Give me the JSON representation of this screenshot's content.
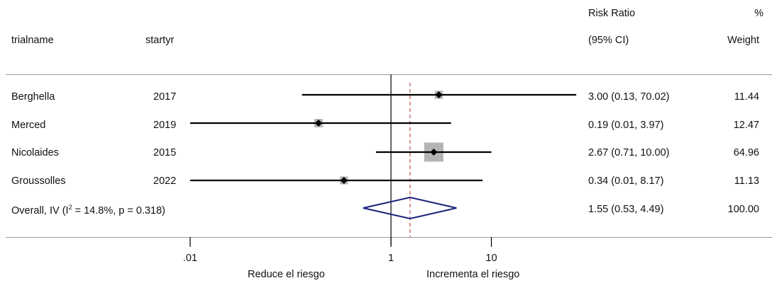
{
  "header": {
    "col_trial": "trialname",
    "col_startyr": "startyr",
    "col_rr_line1": "Risk Ratio",
    "col_rr_line2": "(95% CI)",
    "col_weight_line1": "%",
    "col_weight_line2": "Weight"
  },
  "chart_data": {
    "type": "forest",
    "scale": "log",
    "null_value": 1,
    "xlim": [
      0.0055,
      25
    ],
    "ticks": [
      {
        "label": ".01",
        "value": 0.01
      },
      {
        "label": "1",
        "value": 1
      },
      {
        "label": "10",
        "value": 10
      }
    ],
    "x_left_label": "Reduce el riesgo",
    "x_right_label": "Incrementa el riesgo",
    "studies": [
      {
        "trialname": "Berghella",
        "startyr": "2017",
        "rr": 3.0,
        "lo": 0.13,
        "hi": 70.02,
        "ci_text": "3.00 (0.13, 70.02)",
        "weight": 11.44,
        "weight_text": "11.44"
      },
      {
        "trialname": "Merced",
        "startyr": "2019",
        "rr": 0.19,
        "lo": 0.01,
        "hi": 3.97,
        "ci_text": "0.19 (0.01, 3.97)",
        "weight": 12.47,
        "weight_text": "12.47"
      },
      {
        "trialname": "Nicolaides",
        "startyr": "2015",
        "rr": 2.67,
        "lo": 0.71,
        "hi": 10.0,
        "ci_text": "2.67 (0.71, 10.00)",
        "weight": 64.96,
        "weight_text": "64.96"
      },
      {
        "trialname": "Groussolles",
        "startyr": "2022",
        "rr": 0.34,
        "lo": 0.01,
        "hi": 8.17,
        "ci_text": "0.34 (0.01, 8.17)",
        "weight": 11.13,
        "weight_text": "11.13"
      }
    ],
    "overall": {
      "label_prefix": "Overall, IV (I",
      "label_sup": "2",
      "label_suffix": " = 14.8%, p = 0.318)",
      "rr": 1.55,
      "lo": 0.53,
      "hi": 4.49,
      "ci_text": "1.55 (0.53, 4.49)",
      "weight_text": "100.00"
    },
    "colors": {
      "ci_line": "#000000",
      "point": "#000000",
      "weight_box": "#b4b4b4",
      "diamond": "#1a237e",
      "overall_ref": "#c0504d",
      "null_line": "#000000",
      "separator": "#9a9a9a"
    }
  }
}
